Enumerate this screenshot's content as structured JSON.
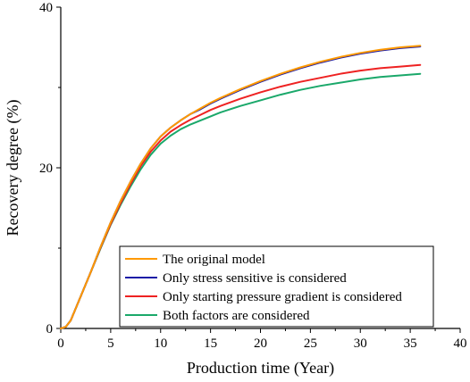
{
  "chart_data": {
    "type": "line",
    "xlabel": "Production time (Year)",
    "ylabel": "Recovery degree (%)",
    "xlim": [
      0,
      40
    ],
    "ylim": [
      0,
      40
    ],
    "x_ticks": [
      0,
      5,
      10,
      15,
      20,
      25,
      30,
      35,
      40
    ],
    "y_ticks": [
      0,
      20,
      40
    ],
    "grid": false,
    "legend_position": "bottom-right",
    "x": [
      0,
      0.5,
      1,
      1.5,
      2,
      3,
      4,
      5,
      6,
      7,
      8,
      9,
      10,
      11,
      12,
      13,
      14,
      15,
      16,
      18,
      20,
      22,
      24,
      26,
      28,
      30,
      32,
      34,
      36
    ],
    "series": [
      {
        "name": "The original model",
        "color": "#ff9900",
        "values": [
          0,
          0.2,
          1.0,
          2.5,
          4.0,
          7.0,
          10.2,
          13.2,
          15.9,
          18.3,
          20.5,
          22.4,
          23.9,
          25.0,
          25.9,
          26.7,
          27.4,
          28.1,
          28.7,
          29.8,
          30.8,
          31.7,
          32.5,
          33.2,
          33.8,
          34.3,
          34.7,
          35.0,
          35.2
        ]
      },
      {
        "name": "Only stress sensitive is considered",
        "color": "#1a1aa6",
        "values": [
          0,
          0.2,
          1.0,
          2.5,
          4.0,
          7.0,
          10.2,
          13.2,
          15.9,
          18.3,
          20.5,
          22.4,
          23.9,
          25.0,
          25.9,
          26.7,
          27.3,
          28.0,
          28.6,
          29.7,
          30.7,
          31.6,
          32.4,
          33.1,
          33.7,
          34.2,
          34.6,
          34.9,
          35.1
        ]
      },
      {
        "name": "Only starting pressure gradient is considered",
        "color": "#ee2222",
        "values": [
          0,
          0.2,
          1.0,
          2.5,
          4.0,
          7.0,
          10.1,
          13.0,
          15.6,
          18.0,
          20.2,
          22.0,
          23.4,
          24.5,
          25.3,
          26.0,
          26.6,
          27.2,
          27.7,
          28.6,
          29.4,
          30.1,
          30.7,
          31.2,
          31.7,
          32.1,
          32.4,
          32.6,
          32.8
        ]
      },
      {
        "name": "Both factors are considered",
        "color": "#1aa86a",
        "values": [
          0,
          0.2,
          1.0,
          2.5,
          4.0,
          7.0,
          10.0,
          12.9,
          15.4,
          17.7,
          19.8,
          21.6,
          23.0,
          24.0,
          24.8,
          25.4,
          25.9,
          26.4,
          26.9,
          27.7,
          28.4,
          29.1,
          29.7,
          30.2,
          30.6,
          31.0,
          31.3,
          31.5,
          31.7
        ]
      }
    ]
  }
}
